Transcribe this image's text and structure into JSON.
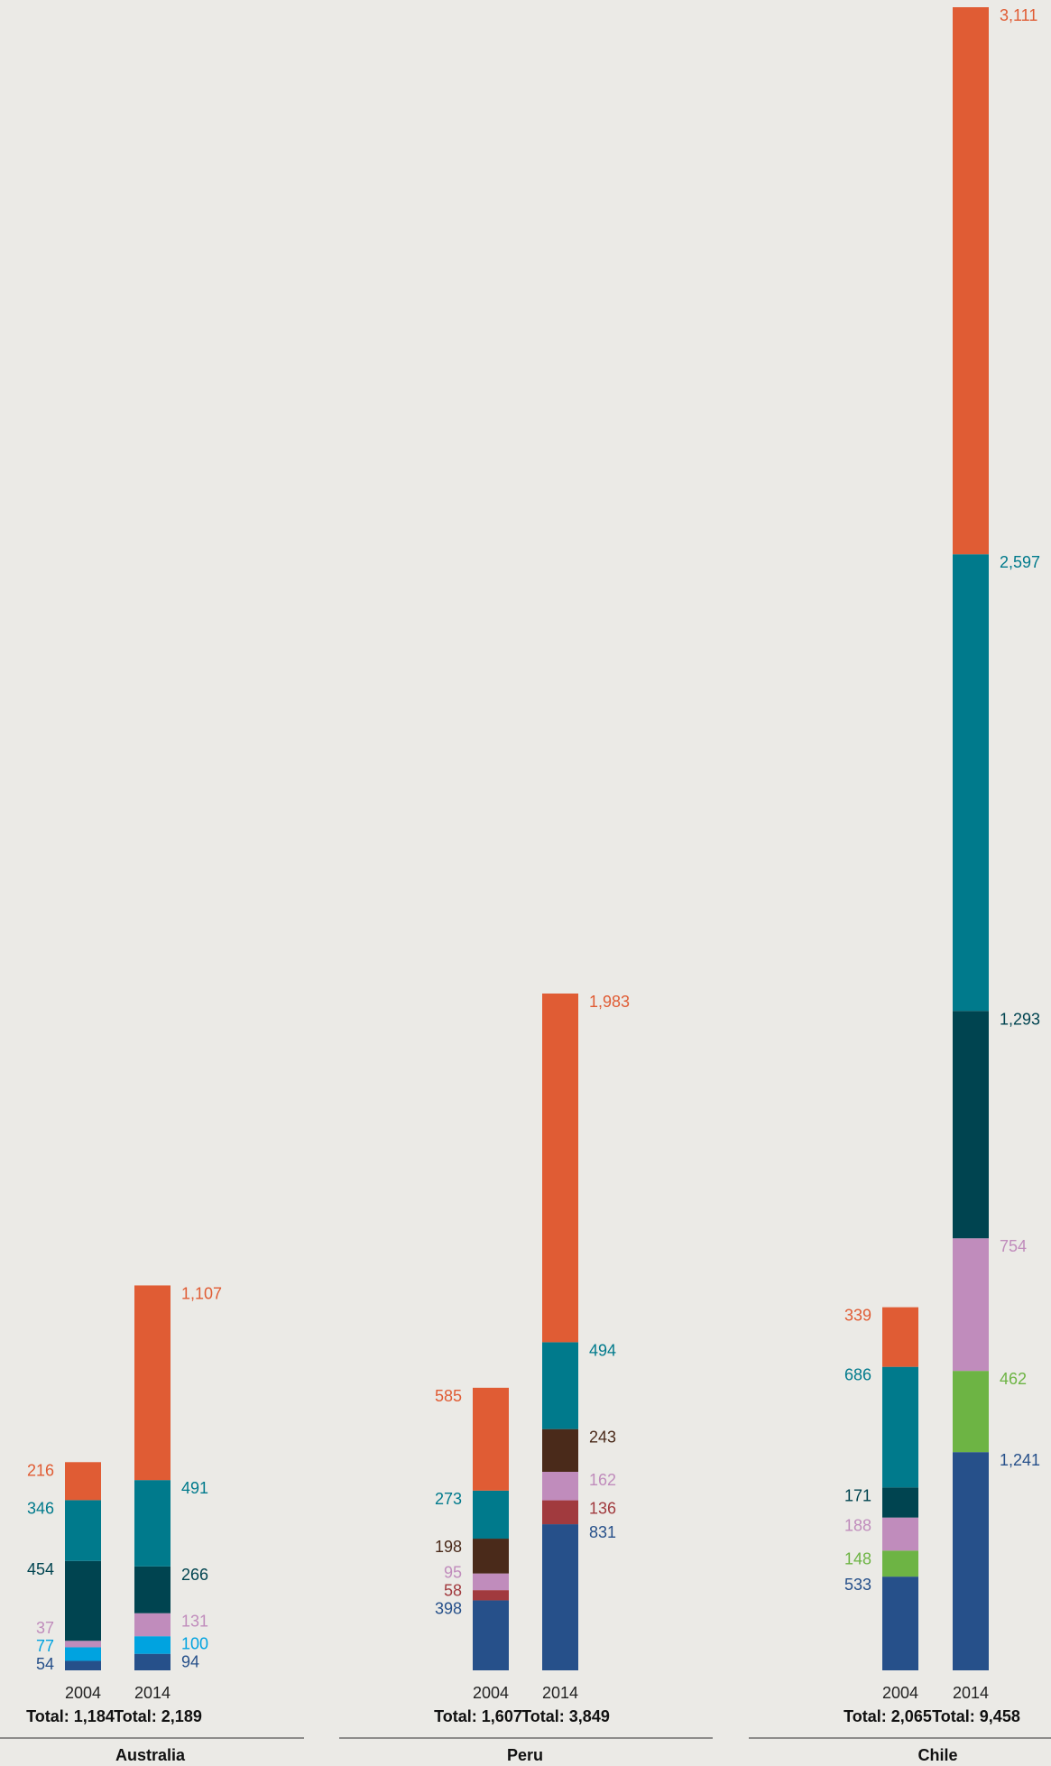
{
  "chart_data": {
    "type": "bar",
    "stacked": true,
    "title": "",
    "xlabel": "",
    "ylabel": "",
    "legend": "none",
    "grid": false,
    "ylim": [
      0,
      9458
    ],
    "colors": [
      "#26508a",
      "#a13a3e",
      "#00a3e0",
      "#6db444",
      "#c08cbc",
      "#4a2a1a",
      "#004450",
      "#007a8c",
      "#e05c34"
    ],
    "groups": [
      {
        "country": "Australia",
        "bars": [
          {
            "year": "2004",
            "total_label": "Total: 1,184",
            "segments": [
              {
                "value": 54,
                "label": "54",
                "color": "#26508a"
              },
              {
                "value": 77,
                "label": "77",
                "color": "#00a3e0"
              },
              {
                "value": 37,
                "label": "37",
                "color": "#c08cbc"
              },
              {
                "value": 454,
                "label": "454",
                "color": "#004450"
              },
              {
                "value": 346,
                "label": "346",
                "color": "#007a8c"
              },
              {
                "value": 216,
                "label": "216",
                "color": "#e05c34"
              }
            ]
          },
          {
            "year": "2014",
            "total_label": "Total: 2,189",
            "segments": [
              {
                "value": 94,
                "label": "94",
                "color": "#26508a"
              },
              {
                "value": 100,
                "label": "100",
                "color": "#00a3e0"
              },
              {
                "value": 131,
                "label": "131",
                "color": "#c08cbc"
              },
              {
                "value": 266,
                "label": "266",
                "color": "#004450"
              },
              {
                "value": 491,
                "label": "491",
                "color": "#007a8c"
              },
              {
                "value": 1107,
                "label": "1,107",
                "color": "#e05c34"
              }
            ]
          }
        ]
      },
      {
        "country": "Peru",
        "bars": [
          {
            "year": "2004",
            "total_label": "Total: 1,607",
            "segments": [
              {
                "value": 398,
                "label": "398",
                "color": "#26508a"
              },
              {
                "value": 58,
                "label": "58",
                "color": "#a13a3e"
              },
              {
                "value": 95,
                "label": "95",
                "color": "#c08cbc"
              },
              {
                "value": 198,
                "label": "198",
                "color": "#4a2a1a"
              },
              {
                "value": 273,
                "label": "273",
                "color": "#007a8c"
              },
              {
                "value": 585,
                "label": "585",
                "color": "#e05c34"
              }
            ]
          },
          {
            "year": "2014",
            "total_label": "Total: 3,849",
            "segments": [
              {
                "value": 831,
                "label": "831",
                "color": "#26508a"
              },
              {
                "value": 136,
                "label": "136",
                "color": "#a13a3e"
              },
              {
                "value": 162,
                "label": "162",
                "color": "#c08cbc"
              },
              {
                "value": 243,
                "label": "243",
                "color": "#4a2a1a"
              },
              {
                "value": 494,
                "label": "494",
                "color": "#007a8c"
              },
              {
                "value": 1983,
                "label": "1,983",
                "color": "#e05c34"
              }
            ]
          }
        ]
      },
      {
        "country": "Chile",
        "bars": [
          {
            "year": "2004",
            "total_label": "Total: 2,065",
            "segments": [
              {
                "value": 533,
                "label": "533",
                "color": "#26508a"
              },
              {
                "value": 148,
                "label": "148",
                "color": "#6db444"
              },
              {
                "value": 188,
                "label": "188",
                "color": "#c08cbc"
              },
              {
                "value": 171,
                "label": "171",
                "color": "#004450"
              },
              {
                "value": 686,
                "label": "686",
                "color": "#007a8c"
              },
              {
                "value": 339,
                "label": "339",
                "color": "#e05c34"
              }
            ]
          },
          {
            "year": "2014",
            "total_label": "Total: 9,458",
            "segments": [
              {
                "value": 1241,
                "label": "1,241",
                "color": "#26508a"
              },
              {
                "value": 462,
                "label": "462",
                "color": "#6db444"
              },
              {
                "value": 754,
                "label": "754",
                "color": "#c08cbc"
              },
              {
                "value": 1293,
                "label": "1,293",
                "color": "#004450"
              },
              {
                "value": 2597,
                "label": "2,597",
                "color": "#007a8c"
              },
              {
                "value": 3111,
                "label": "3,111",
                "color": "#e05c34"
              }
            ]
          }
        ]
      }
    ]
  }
}
